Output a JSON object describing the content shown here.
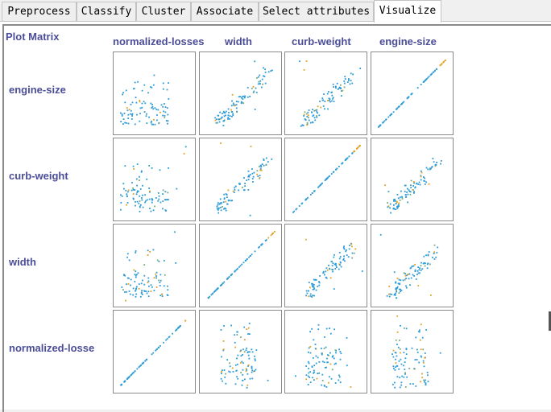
{
  "tabs": [
    {
      "label": "Preprocess",
      "active": false
    },
    {
      "label": "Classify",
      "active": false
    },
    {
      "label": "Cluster",
      "active": false
    },
    {
      "label": "Associate",
      "active": false
    },
    {
      "label": "Select attributes",
      "active": false
    },
    {
      "label": "Visualize",
      "active": true
    }
  ],
  "matrix": {
    "title": "Plot Matrix",
    "columns": [
      "normalized-losses",
      "width",
      "curb-weight",
      "engine-size"
    ],
    "rows": [
      "engine-size",
      "curb-weight",
      "width",
      "normalized-losse"
    ]
  },
  "colors": {
    "label": "#4b4d98",
    "point_primary": "#2a9bd6",
    "point_secondary": "#e0a020",
    "point_tertiary": "#7aa87a"
  }
}
